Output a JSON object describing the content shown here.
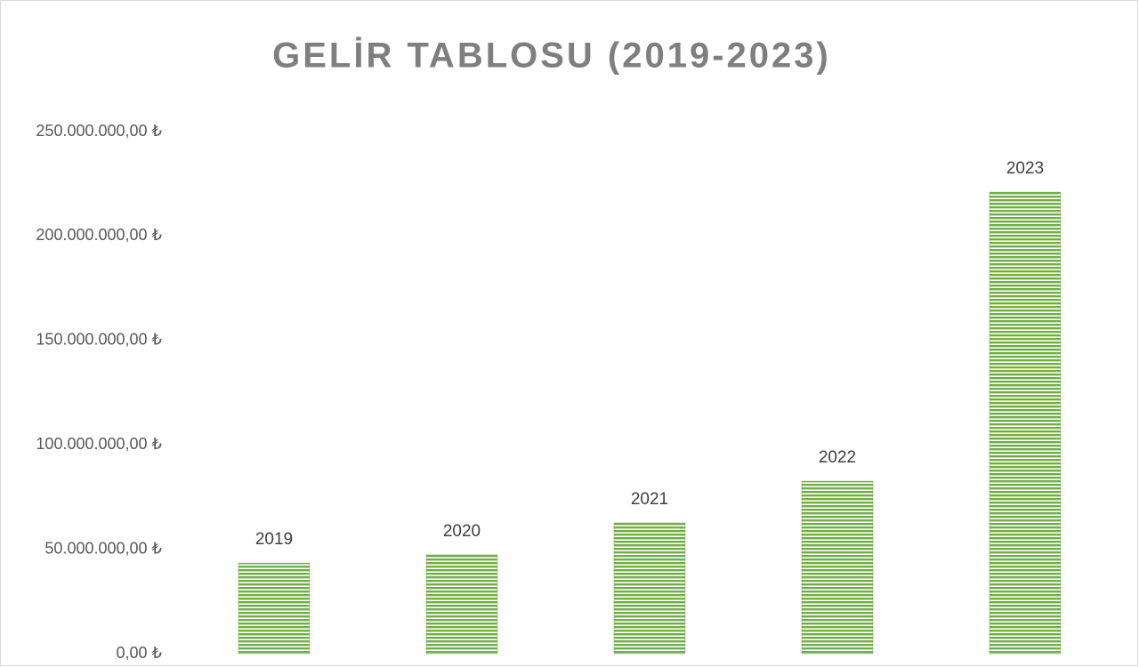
{
  "chart_data": {
    "type": "bar",
    "title": "GELİR TABLOSU (2019-2023)",
    "categories": [
      "2019",
      "2020",
      "2021",
      "2022",
      "2023"
    ],
    "values": [
      43400000,
      47300000,
      62600000,
      82600000,
      221000000
    ],
    "color": "#70ad47",
    "ylim": [
      0,
      250000000
    ],
    "yticks": [
      {
        "value": 0,
        "label": "0,00 ₺"
      },
      {
        "value": 50000000,
        "label": "50.000.000,00 ₺"
      },
      {
        "value": 100000000,
        "label": "100.000.000,00 ₺"
      },
      {
        "value": 150000000,
        "label": "150.000.000,00 ₺"
      },
      {
        "value": 200000000,
        "label": "200.000.000,00 ₺"
      },
      {
        "value": 250000000,
        "label": "250.000.000,00 ₺"
      }
    ],
    "grid": false
  }
}
